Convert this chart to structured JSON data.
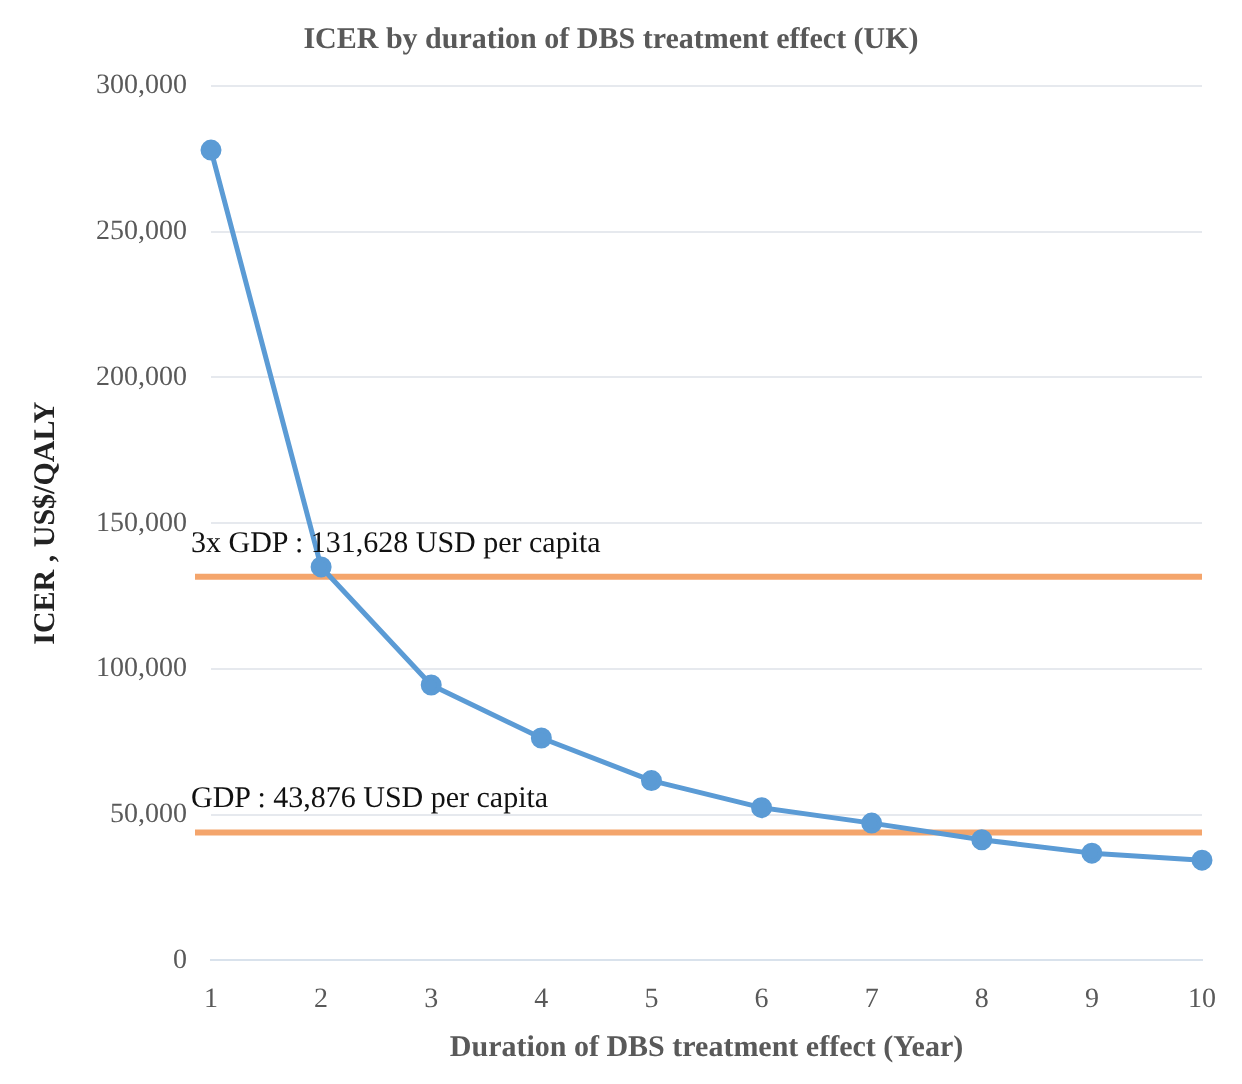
{
  "chart_data": {
    "type": "line",
    "title": "ICER by duration of DBS treatment effect (UK)",
    "xlabel": "Duration of DBS treatment effect (Year)",
    "ylabel": "ICER , US$/QALY",
    "categories": [
      "1",
      "2",
      "3",
      "4",
      "5",
      "6",
      "7",
      "8",
      "9",
      "10"
    ],
    "series": [
      {
        "color": "#5b9bd5",
        "values": [
          278000,
          135000,
          94500,
          76300,
          61700,
          52400,
          47100,
          41400,
          36800,
          34400
        ]
      }
    ],
    "ylim": [
      0,
      300000
    ],
    "yticks": [
      {
        "value": 0,
        "label": "0"
      },
      {
        "value": 50000,
        "label": "50,000"
      },
      {
        "value": 100000,
        "label": "100,000"
      },
      {
        "value": 150000,
        "label": "150,000"
      },
      {
        "value": 200000,
        "label": "200,000"
      },
      {
        "value": 250000,
        "label": "250,000"
      },
      {
        "value": 300000,
        "label": "300,000"
      }
    ],
    "grid": "y",
    "marker": "circle",
    "line_style": "solid",
    "legend": false,
    "ref_lines": [
      {
        "axis": "y",
        "value": 131628,
        "label": "3x GDP : 131,628 USD per capita",
        "color": "#f4a56c"
      },
      {
        "axis": "y",
        "value": 43876,
        "label": "GDP : 43,876 USD per capita",
        "color": "#f4a56c"
      }
    ]
  }
}
